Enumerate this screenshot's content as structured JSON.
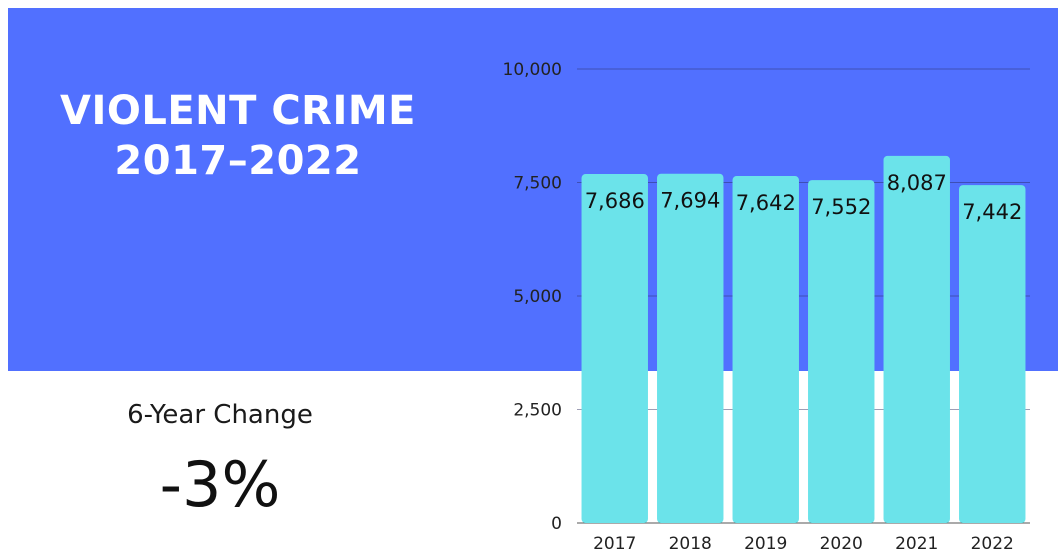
{
  "title": {
    "line1": "VIOLENT CRIME",
    "line2": "2017–2022"
  },
  "change": {
    "label": "6-Year Change",
    "value": "-3%"
  },
  "colors": {
    "band": "#5170ff",
    "bar": "#6be3ea",
    "text": "#111111"
  },
  "chart_data": {
    "type": "bar",
    "categories": [
      "2017",
      "2018",
      "2019",
      "2020",
      "2021",
      "2022"
    ],
    "values": [
      7686,
      7694,
      7642,
      7552,
      8087,
      7442
    ],
    "value_labels": [
      "7,686",
      "7,694",
      "7,642",
      "7,552",
      "8,087",
      "7,442"
    ],
    "yticks": [
      0,
      2500,
      5000,
      7500,
      10000
    ],
    "ytick_labels": [
      "0",
      "2,500",
      "5,000",
      "7,500",
      "10,000"
    ],
    "ylim": [
      0,
      10000
    ],
    "grid": true,
    "title": "",
    "xlabel": "",
    "ylabel": ""
  }
}
